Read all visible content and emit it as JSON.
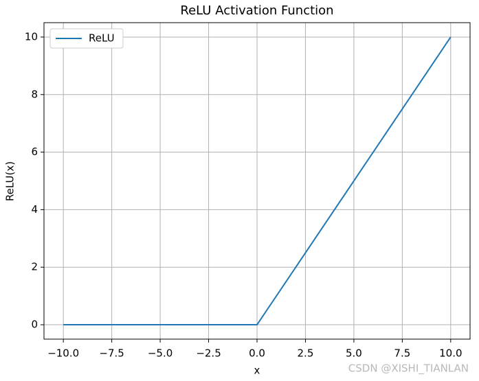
{
  "chart_data": {
    "type": "line",
    "title": "ReLU Activation Function",
    "x_label": "x",
    "y_label": "ReLU(x)",
    "x": [
      -10,
      0,
      10
    ],
    "series": [
      {
        "name": "ReLU",
        "color": "#1f77b4",
        "values": [
          0,
          0,
          10
        ]
      }
    ],
    "xlim": [
      -11,
      11
    ],
    "ylim": [
      -0.5,
      10.5
    ],
    "xticks": [
      {
        "value": -10,
        "label": "−10.0"
      },
      {
        "value": -7.5,
        "label": "−7.5"
      },
      {
        "value": -5,
        "label": "−5.0"
      },
      {
        "value": -2.5,
        "label": "−2.5"
      },
      {
        "value": 0,
        "label": "0.0"
      },
      2.5,
      {
        "value": 5,
        "label": "5.0"
      },
      7.5,
      {
        "value": 10,
        "label": "10.0"
      }
    ],
    "yticks": [
      0,
      2,
      4,
      6,
      8,
      10
    ],
    "grid": true,
    "legend": "upper left",
    "watermark": "CSDN @XISHI_TIANLAN"
  }
}
